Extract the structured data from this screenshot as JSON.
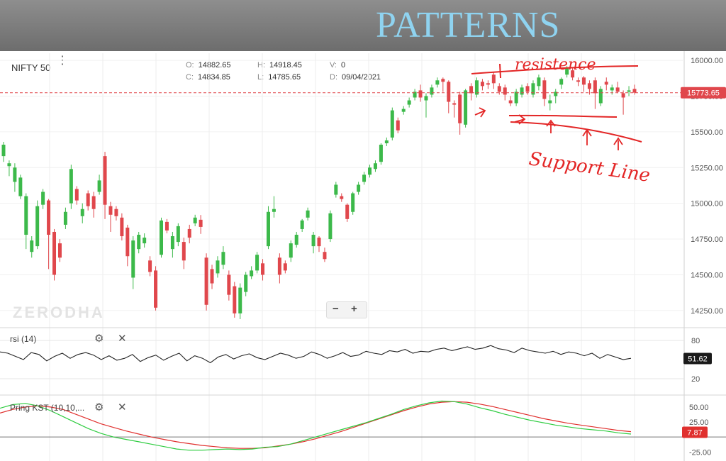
{
  "banner": {
    "title": "PATTERNS"
  },
  "header": {
    "symbol": "NIFTY 50",
    "menu_icon": "more-vertical-icon",
    "ohlc": {
      "open_label": "O:",
      "open": "14882.65",
      "high_label": "H:",
      "high": "14918.45",
      "volume_label": "V:",
      "volume": "0",
      "close_label": "C:",
      "close": "14834.85",
      "low_label": "L:",
      "low": "14785.65",
      "date_label": "D:",
      "date": "09/04/2021"
    }
  },
  "watermark": "ZERODHA",
  "zoom": {
    "minus": "−",
    "plus": "+"
  },
  "colors": {
    "up": "#3cb94a",
    "down": "#e0474c",
    "price_line": "#e0474c",
    "kst": "#e0302e",
    "kst_signal": "#2ecc40",
    "annotation": "#e32626"
  },
  "annotations": {
    "resistance": "resistence",
    "support": "Support Line"
  },
  "panels": {
    "rsi": {
      "label": "rsi (14)",
      "value": "51.62",
      "levels": [
        "80",
        "20"
      ],
      "settings_icon": "gear-icon",
      "close_icon": "close-icon"
    },
    "kst": {
      "label": "Pring KST (10,10,...",
      "value": "7.87",
      "levels": [
        "50.00",
        "25.00",
        "-25.00"
      ],
      "settings_icon": "gear-icon",
      "close_icon": "close-icon"
    }
  },
  "chart_data": {
    "type": "candlestick",
    "price": {
      "ylim": [
        14150,
        16050
      ],
      "ticks": [
        "16000.00",
        "15750.00",
        "15500.00",
        "15250.00",
        "15000.00",
        "14750.00",
        "14500.00",
        "14250.00"
      ],
      "last_price": "15773.65",
      "candles": [
        [
          15330,
          15410,
          15290,
          15430
        ],
        [
          15260,
          15280,
          15190,
          15300
        ],
        [
          15150,
          15250,
          15080,
          15280
        ],
        [
          15050,
          15180,
          15030,
          15200
        ],
        [
          14780,
          15050,
          14680,
          15070
        ],
        [
          14660,
          14740,
          14620,
          14770
        ],
        [
          14700,
          14980,
          14680,
          15020
        ],
        [
          14990,
          15080,
          14960,
          15100
        ],
        [
          15020,
          14780,
          14540,
          15030
        ],
        [
          14800,
          14500,
          14460,
          14820
        ],
        [
          14720,
          14620,
          14590,
          14750
        ],
        [
          14850,
          14940,
          14820,
          14970
        ],
        [
          15000,
          15240,
          14960,
          15270
        ],
        [
          15100,
          15020,
          14990,
          15120
        ],
        [
          14910,
          14960,
          14860,
          15000
        ],
        [
          15070,
          14980,
          14950,
          15090
        ],
        [
          15050,
          14960,
          14900,
          15080
        ],
        [
          15080,
          15160,
          15060,
          15200
        ],
        [
          15330,
          14990,
          14890,
          15360
        ],
        [
          14980,
          14920,
          14800,
          15010
        ],
        [
          14960,
          14910,
          14880,
          14980
        ],
        [
          14900,
          14770,
          14740,
          14930
        ],
        [
          14830,
          14630,
          14560,
          14850
        ],
        [
          14480,
          14740,
          14400,
          14770
        ],
        [
          14680,
          14780,
          14650,
          14800
        ],
        [
          14720,
          14760,
          14690,
          14790
        ],
        [
          14600,
          14520,
          14490,
          14630
        ],
        [
          14530,
          14270,
          14250,
          14560
        ],
        [
          14640,
          14880,
          14620,
          14900
        ],
        [
          14870,
          14810,
          14790,
          14890
        ],
        [
          14680,
          14770,
          14620,
          14800
        ],
        [
          14730,
          14840,
          14700,
          14860
        ],
        [
          14730,
          14600,
          14540,
          14760
        ],
        [
          14820,
          14760,
          14720,
          14850
        ],
        [
          14860,
          14900,
          14840,
          14920
        ],
        [
          14885,
          14835,
          14786,
          14918
        ],
        [
          14620,
          14290,
          14250,
          14650
        ],
        [
          14540,
          14440,
          14400,
          14570
        ],
        [
          14510,
          14600,
          14480,
          14630
        ],
        [
          14570,
          14660,
          14540,
          14700
        ],
        [
          14500,
          14360,
          14320,
          14530
        ],
        [
          14420,
          14230,
          14200,
          14450
        ],
        [
          14230,
          14410,
          14190,
          14440
        ],
        [
          14380,
          14500,
          14350,
          14520
        ],
        [
          14490,
          14530,
          14470,
          14560
        ],
        [
          14530,
          14640,
          14510,
          14660
        ],
        [
          14580,
          14500,
          14460,
          14610
        ],
        [
          14700,
          14940,
          14680,
          14980
        ],
        [
          14940,
          14960,
          14900,
          15050
        ],
        [
          14620,
          14500,
          14440,
          14650
        ],
        [
          14580,
          14530,
          14510,
          14600
        ],
        [
          14620,
          14720,
          14590,
          14740
        ],
        [
          14710,
          14780,
          14690,
          14800
        ],
        [
          14820,
          14880,
          14800,
          14890
        ],
        [
          14900,
          14950,
          14880,
          14970
        ],
        [
          14700,
          14780,
          14650,
          14800
        ],
        [
          14760,
          14700,
          14660,
          14770
        ],
        [
          14660,
          14610,
          14590,
          14690
        ],
        [
          14750,
          14930,
          14730,
          14950
        ],
        [
          15060,
          15130,
          15040,
          15150
        ],
        [
          15050,
          15030,
          15010,
          15070
        ],
        [
          14990,
          14890,
          14870,
          15000
        ],
        [
          14940,
          15070,
          14920,
          15080
        ],
        [
          15080,
          15130,
          15060,
          15150
        ],
        [
          15150,
          15200,
          15130,
          15220
        ],
        [
          15200,
          15250,
          15180,
          15270
        ],
        [
          15240,
          15280,
          15220,
          15300
        ],
        [
          15290,
          15410,
          15270,
          15420
        ],
        [
          15420,
          15440,
          15400,
          15460
        ],
        [
          15460,
          15650,
          15440,
          15670
        ],
        [
          15580,
          15510,
          15490,
          15600
        ],
        [
          15640,
          15660,
          15620,
          15680
        ],
        [
          15690,
          15720,
          15670,
          15740
        ],
        [
          15740,
          15780,
          15720,
          15800
        ],
        [
          15790,
          15740,
          15710,
          15830
        ],
        [
          15720,
          15750,
          15600,
          15770
        ],
        [
          15760,
          15810,
          15740,
          15830
        ],
        [
          15830,
          15860,
          15810,
          15880
        ],
        [
          15870,
          15850,
          15780,
          15880
        ],
        [
          15850,
          15710,
          15630,
          15860
        ],
        [
          15700,
          15690,
          15600,
          15720
        ],
        [
          15760,
          15560,
          15480,
          15780
        ],
        [
          15550,
          15790,
          15530,
          15800
        ],
        [
          15820,
          15770,
          15720,
          15840
        ],
        [
          15760,
          15860,
          15740,
          15880
        ],
        [
          15850,
          15820,
          15790,
          15870
        ],
        [
          15840,
          15830,
          15800,
          15860
        ],
        [
          15900,
          15840,
          15800,
          15920
        ],
        [
          15820,
          15780,
          15760,
          15840
        ],
        [
          15810,
          15760,
          15720,
          15830
        ],
        [
          15720,
          15700,
          15680,
          15750
        ],
        [
          15700,
          15780,
          15680,
          15800
        ],
        [
          15760,
          15810,
          15740,
          15830
        ],
        [
          15820,
          15780,
          15760,
          15840
        ],
        [
          15760,
          15840,
          15740,
          15860
        ],
        [
          15820,
          15880,
          15790,
          15900
        ],
        [
          15860,
          15730,
          15680,
          15880
        ],
        [
          15700,
          15720,
          15650,
          15760
        ],
        [
          15750,
          15780,
          15700,
          15800
        ],
        [
          15830,
          15870,
          15800,
          15880
        ],
        [
          15900,
          15950,
          15880,
          15960
        ],
        [
          15930,
          15880,
          15860,
          15950
        ],
        [
          15860,
          15850,
          15820,
          15880
        ],
        [
          15880,
          15830,
          15780,
          15890
        ],
        [
          15840,
          15800,
          15760,
          15860
        ],
        [
          15860,
          15770,
          15660,
          15880
        ],
        [
          15700,
          15800,
          15680,
          15820
        ],
        [
          15850,
          15830,
          15790,
          15880
        ],
        [
          15790,
          15810,
          15760,
          15830
        ],
        [
          15810,
          15780,
          15770,
          15850
        ],
        [
          15770,
          15740,
          15620,
          15790
        ],
        [
          15780,
          15790,
          15750,
          15820
        ],
        [
          15800,
          15774,
          15760,
          15830
        ]
      ]
    },
    "rsi": {
      "ylim": [
        0,
        100
      ],
      "values": [
        62,
        60,
        55,
        50,
        61,
        58,
        48,
        55,
        60,
        52,
        58,
        61,
        57,
        50,
        56,
        49,
        52,
        58,
        47,
        53,
        57,
        49,
        55,
        60,
        48,
        56,
        52,
        45,
        54,
        58,
        51,
        56,
        59,
        53,
        50,
        55,
        60,
        57,
        52,
        55,
        62,
        58,
        52,
        56,
        61,
        55,
        57,
        63,
        60,
        58,
        64,
        62,
        66,
        60,
        63,
        62,
        66,
        68,
        64,
        67,
        70,
        66,
        68,
        72,
        67,
        65,
        61,
        68,
        64,
        62,
        60,
        63,
        58,
        62,
        60,
        56,
        60,
        52,
        58,
        54,
        50,
        52
      ]
    },
    "kst": {
      "ylim": [
        -40,
        70
      ],
      "kst": [
        40,
        46,
        50,
        52,
        50,
        46,
        38,
        30,
        22,
        16,
        10,
        5,
        0,
        -4,
        -8,
        -11,
        -14,
        -16,
        -18,
        -19,
        -19,
        -18,
        -15,
        -12,
        -8,
        -3,
        3,
        9,
        16,
        23,
        30,
        37,
        44,
        50,
        55,
        58,
        59,
        58,
        55,
        51,
        46,
        41,
        36,
        31,
        27,
        23,
        20,
        17,
        14,
        11,
        9
      ],
      "signal": [
        48,
        54,
        56,
        52,
        44,
        34,
        24,
        14,
        6,
        0,
        -4,
        -8,
        -12,
        -16,
        -20,
        -22,
        -22,
        -21,
        -20,
        -21,
        -20,
        -17,
        -16,
        -12,
        -6,
        0,
        6,
        12,
        18,
        24,
        31,
        38,
        46,
        52,
        57,
        60,
        59,
        55,
        49,
        44,
        38,
        33,
        28,
        24,
        20,
        17,
        14,
        12,
        10,
        7,
        5
      ]
    }
  }
}
